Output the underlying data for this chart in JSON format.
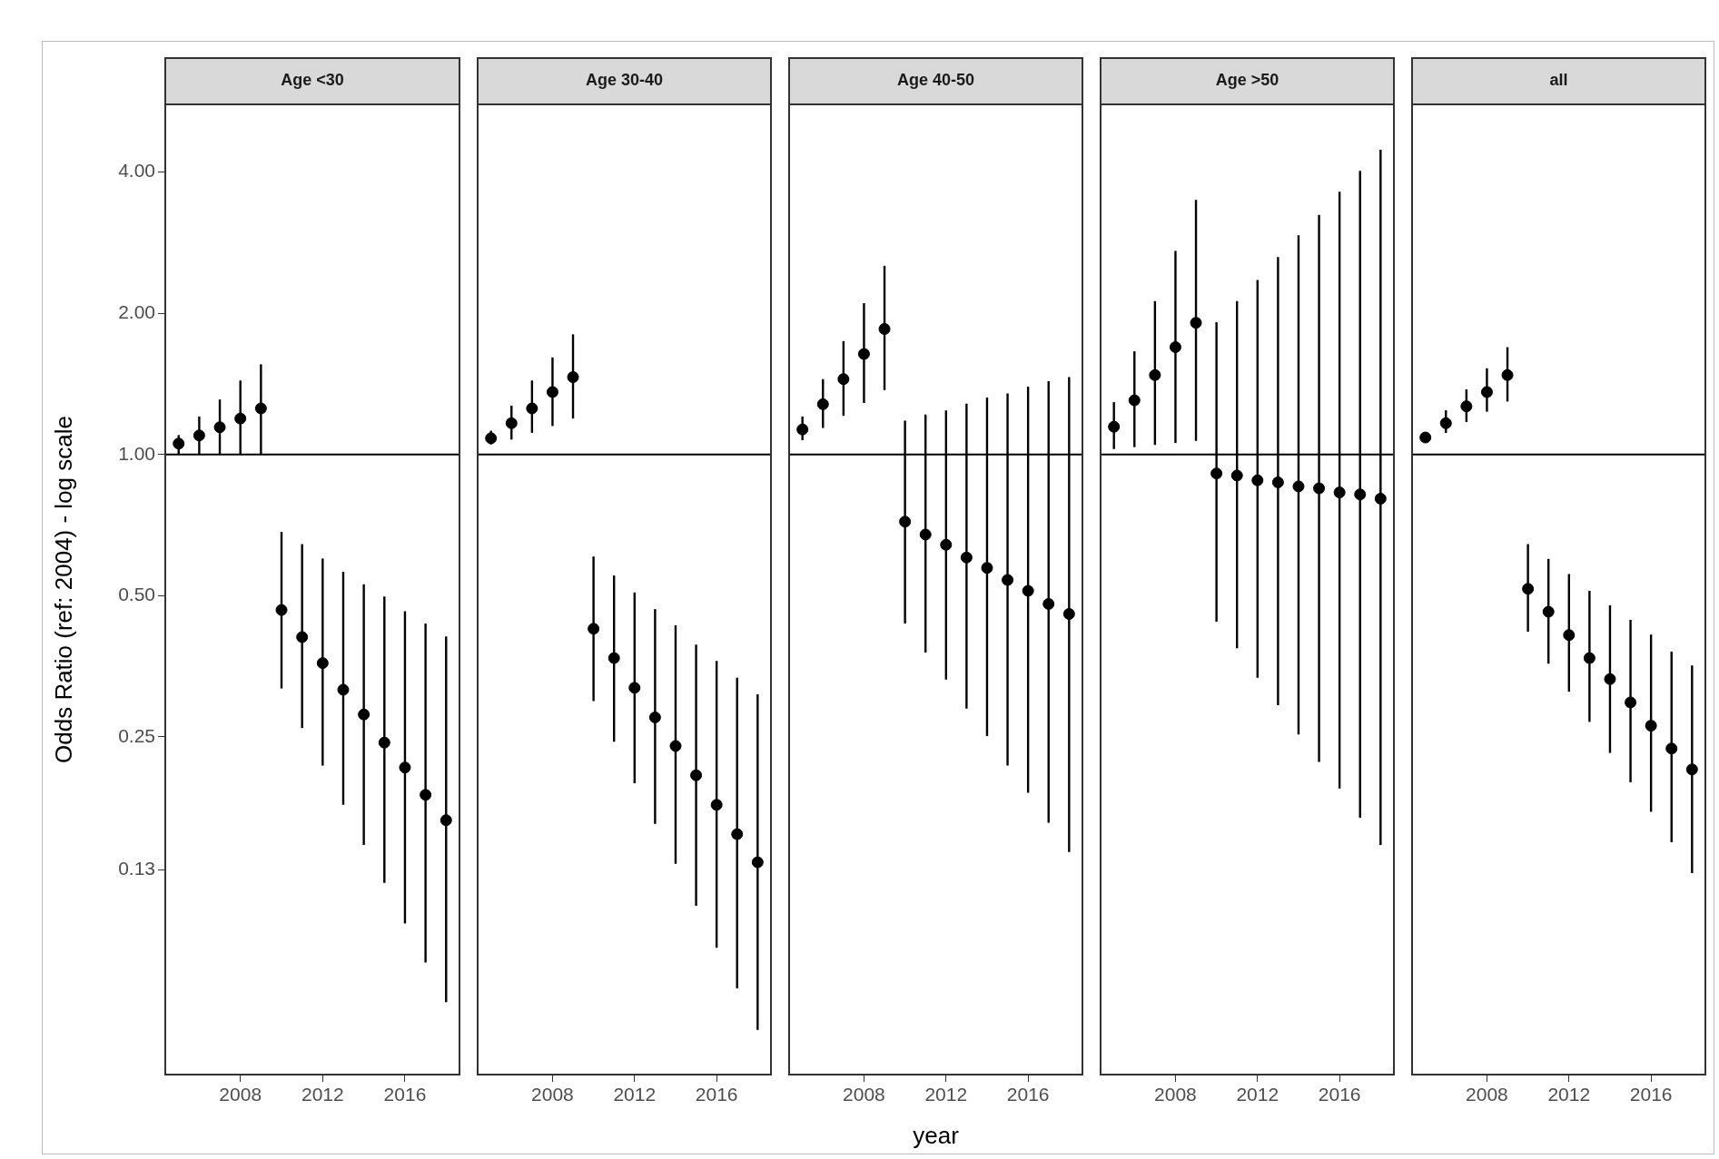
{
  "chart_data": [
    {
      "type": "scatter",
      "title": "Age <30",
      "ylabel": "Odds Ratio (ref: 2004) - log scale",
      "color": "#000000",
      "marker": "circle",
      "log": "y",
      "x": [
        2005,
        2006,
        2007,
        2008,
        2009,
        2010,
        2011,
        2012,
        2013,
        2014,
        2015,
        2016,
        2017,
        2018
      ],
      "values": [
        1.055,
        1.098,
        1.143,
        1.193,
        1.254,
        0.466,
        0.408,
        0.359,
        0.315,
        0.279,
        0.243,
        0.215,
        0.188,
        0.166
      ],
      "errors": [
        [
          1.0,
          1.1
        ],
        [
          1.0,
          1.205
        ],
        [
          1.0,
          1.31
        ],
        [
          1.0,
          1.438
        ],
        [
          1.0,
          1.557
        ],
        [
          0.317,
          0.684
        ],
        [
          0.261,
          0.644
        ],
        [
          0.217,
          0.6
        ],
        [
          0.179,
          0.562
        ],
        [
          0.147,
          0.529
        ],
        [
          0.122,
          0.498
        ],
        [
          0.1,
          0.463
        ],
        [
          0.0825,
          0.436
        ],
        [
          0.0679,
          0.409
        ]
      ],
      "xlim": [
        2004.35,
        2018.65
      ],
      "xticks": [
        2008,
        2012,
        2016
      ],
      "ylim": [
        0.0476,
        5.58
      ],
      "yticks": [
        0.13,
        0.25,
        {
          "value": 0.5,
          "label": "0.50"
        },
        {
          "value": 1,
          "label": "1.00"
        },
        {
          "value": 2,
          "label": "2.00"
        },
        {
          "value": 4,
          "label": "4.00"
        }
      ],
      "ref_lines": [
        {
          "axis": "y",
          "value": 1
        }
      ]
    },
    {
      "type": "scatter",
      "title": "Age 30-40",
      "color": "#000000",
      "marker": "circle",
      "log": "y",
      "tick_labels": "x",
      "x": [
        2005,
        2006,
        2007,
        2008,
        2009,
        2010,
        2011,
        2012,
        2013,
        2014,
        2015,
        2016,
        2017,
        2018
      ],
      "values": [
        1.083,
        1.166,
        1.254,
        1.359,
        1.462,
        0.425,
        0.368,
        0.318,
        0.275,
        0.239,
        0.207,
        0.179,
        0.155,
        0.135
      ],
      "errors": [
        [
          1.051,
          1.124
        ],
        [
          1.076,
          1.271
        ],
        [
          1.112,
          1.438
        ],
        [
          1.15,
          1.611
        ],
        [
          1.193,
          1.804
        ],
        [
          0.298,
          0.606
        ],
        [
          0.244,
          0.552
        ],
        [
          0.199,
          0.508
        ],
        [
          0.163,
          0.468
        ],
        [
          0.134,
          0.432
        ],
        [
          0.109,
          0.393
        ],
        [
          0.0887,
          0.363
        ],
        [
          0.0727,
          0.334
        ],
        [
          0.0593,
          0.308
        ]
      ],
      "xlim": [
        2004.35,
        2018.65
      ],
      "xticks": [
        2008,
        2012,
        2016
      ],
      "ylim": [
        0.0476,
        5.58
      ],
      "ref_lines": [
        {
          "axis": "y",
          "value": 1
        }
      ]
    },
    {
      "type": "scatter",
      "title": "Age 40-50",
      "xlabel": "year",
      "color": "#000000",
      "marker": "circle",
      "log": "y",
      "tick_labels": "x",
      "x": [
        2005,
        2006,
        2007,
        2008,
        2009,
        2010,
        2011,
        2012,
        2013,
        2014,
        2015,
        2016,
        2017,
        2018
      ],
      "values": [
        1.131,
        1.28,
        1.448,
        1.638,
        1.852,
        0.719,
        0.675,
        0.642,
        0.603,
        0.573,
        0.54,
        0.512,
        0.48,
        0.457
      ],
      "errors": [
        [
          1.073,
          1.205
        ],
        [
          1.139,
          1.448
        ],
        [
          1.209,
          1.745
        ],
        [
          1.288,
          2.103
        ],
        [
          1.372,
          2.526
        ],
        [
          0.436,
          1.181
        ],
        [
          0.378,
          1.217
        ],
        [
          0.331,
          1.242
        ],
        [
          0.287,
          1.284
        ],
        [
          0.251,
          1.323
        ],
        [
          0.217,
          1.35
        ],
        [
          0.19,
          1.395
        ],
        [
          0.164,
          1.433
        ],
        [
          0.142,
          1.462
        ]
      ],
      "xlim": [
        2004.35,
        2018.65
      ],
      "xticks": [
        2008,
        2012,
        2016
      ],
      "ylim": [
        0.0476,
        5.58
      ],
      "ref_lines": [
        {
          "axis": "y",
          "value": 1
        }
      ]
    },
    {
      "type": "scatter",
      "title": "Age >50",
      "color": "#000000",
      "marker": "circle",
      "log": "y",
      "tick_labels": "x",
      "x": [
        2005,
        2006,
        2007,
        2008,
        2009,
        2010,
        2011,
        2012,
        2013,
        2014,
        2015,
        2016,
        2017,
        2018
      ],
      "values": [
        1.146,
        1.305,
        1.477,
        1.694,
        1.909,
        0.911,
        0.902,
        0.881,
        0.872,
        0.855,
        0.847,
        0.83,
        0.822,
        0.805
      ],
      "errors": [
        [
          1.027,
          1.293
        ],
        [
          1.037,
          1.66
        ],
        [
          1.048,
          2.124
        ],
        [
          1.058,
          2.718
        ],
        [
          1.069,
          3.489
        ],
        [
          0.44,
          1.915
        ],
        [
          0.386,
          2.124
        ],
        [
          0.334,
          2.355
        ],
        [
          0.292,
          2.637
        ],
        [
          0.253,
          2.934
        ],
        [
          0.221,
          3.243
        ],
        [
          0.194,
          3.632
        ],
        [
          0.168,
          4.028
        ],
        [
          0.147,
          4.465
        ]
      ],
      "xlim": [
        2004.35,
        2018.65
      ],
      "xticks": [
        2008,
        2012,
        2016
      ],
      "ylim": [
        0.0476,
        5.58
      ],
      "ref_lines": [
        {
          "axis": "y",
          "value": 1
        }
      ]
    },
    {
      "type": "scatter",
      "title": "all",
      "color": "#000000",
      "marker": "circle",
      "log": "y",
      "tick_labels": "x",
      "x": [
        2005,
        2006,
        2007,
        2008,
        2009,
        2010,
        2011,
        2012,
        2013,
        2014,
        2015,
        2016,
        2017,
        2018
      ],
      "values": [
        1.087,
        1.166,
        1.267,
        1.359,
        1.477,
        0.517,
        0.462,
        0.412,
        0.368,
        0.332,
        0.296,
        0.264,
        0.236,
        0.213
      ],
      "errors": [
        [
          1.065,
          1.109
        ],
        [
          1.112,
          1.242
        ],
        [
          1.173,
          1.377
        ],
        [
          1.234,
          1.527
        ],
        [
          1.297,
          1.694
        ],
        [
          0.419,
          0.644
        ],
        [
          0.358,
          0.599
        ],
        [
          0.312,
          0.556
        ],
        [
          0.269,
          0.512
        ],
        [
          0.231,
          0.477
        ],
        [
          0.2,
          0.444
        ],
        [
          0.173,
          0.413
        ],
        [
          0.149,
          0.38
        ],
        [
          0.128,
          0.355
        ]
      ],
      "xlim": [
        2004.35,
        2018.65
      ],
      "xticks": [
        2008,
        2012,
        2016
      ],
      "ylim": [
        0.0476,
        5.58
      ],
      "ref_lines": [
        {
          "axis": "y",
          "value": 1
        }
      ]
    }
  ]
}
